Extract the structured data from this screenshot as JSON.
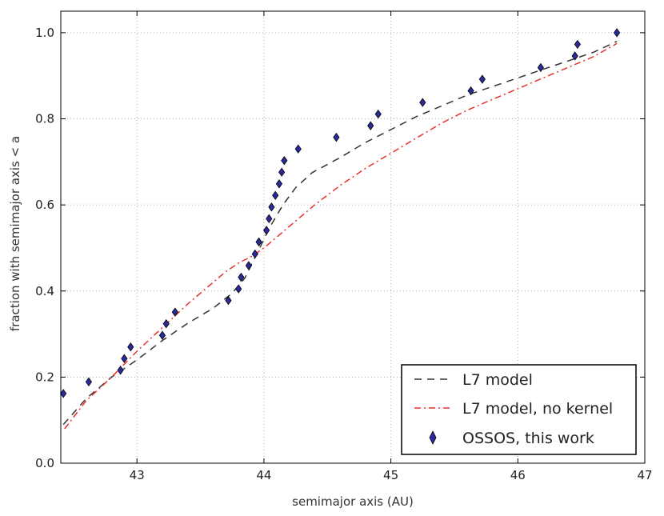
{
  "chart_data": {
    "type": "line",
    "xlabel": "semimajor axis (AU)",
    "ylabel": "fraction with semimajor axis < a",
    "xlim": [
      42.4,
      47.0
    ],
    "ylim": [
      0.0,
      1.05
    ],
    "x_ticks": [
      43,
      44,
      45,
      46,
      47
    ],
    "y_ticks": [
      0.0,
      0.2,
      0.4,
      0.6,
      0.8,
      1.0
    ],
    "x_tick_labels": [
      "43",
      "44",
      "45",
      "46",
      "47"
    ],
    "y_tick_labels": [
      "0.0",
      "0.2",
      "0.4",
      "0.6",
      "0.8",
      "1.0"
    ],
    "grid": true,
    "legend_position": "bottom-right",
    "series": [
      {
        "name": "L7 model",
        "style": "dashed",
        "color": "#333333",
        "x": [
          42.42,
          42.6,
          42.8,
          43.0,
          43.2,
          43.4,
          43.6,
          43.75,
          43.85,
          43.95,
          44.05,
          44.15,
          44.25,
          44.38,
          44.6,
          44.8,
          45.0,
          45.2,
          45.4,
          45.6,
          45.8,
          46.0,
          46.2,
          46.4,
          46.6,
          46.78
        ],
        "y": [
          0.09,
          0.15,
          0.2,
          0.24,
          0.285,
          0.325,
          0.36,
          0.395,
          0.43,
          0.49,
          0.55,
          0.6,
          0.64,
          0.675,
          0.71,
          0.745,
          0.775,
          0.805,
          0.83,
          0.855,
          0.875,
          0.895,
          0.915,
          0.935,
          0.955,
          0.98
        ]
      },
      {
        "name": "L7 model, no kernel",
        "style": "dash-dot",
        "color": "#e8302a",
        "x": [
          42.43,
          42.6,
          42.8,
          43.0,
          43.2,
          43.4,
          43.6,
          43.7,
          43.8,
          43.9,
          44.0,
          44.2,
          44.4,
          44.6,
          44.8,
          45.0,
          45.2,
          45.4,
          45.6,
          45.8,
          46.0,
          46.2,
          46.4,
          46.6,
          46.78
        ],
        "y": [
          0.08,
          0.145,
          0.2,
          0.26,
          0.315,
          0.37,
          0.42,
          0.445,
          0.465,
          0.48,
          0.5,
          0.55,
          0.6,
          0.645,
          0.685,
          0.72,
          0.755,
          0.79,
          0.82,
          0.845,
          0.87,
          0.895,
          0.92,
          0.945,
          0.975
        ]
      },
      {
        "name": "OSSOS, this work",
        "style": "markers",
        "marker": "diamond",
        "color": "#2a2a9a",
        "x": [
          42.42,
          42.62,
          42.87,
          42.9,
          42.95,
          43.2,
          43.23,
          43.3,
          43.72,
          43.8,
          43.82,
          43.88,
          43.93,
          43.96,
          44.02,
          44.04,
          44.06,
          44.09,
          44.12,
          44.14,
          44.16,
          44.27,
          44.57,
          44.84,
          44.9,
          45.25,
          45.63,
          45.72,
          46.18,
          46.45,
          46.47,
          46.78
        ],
        "y": [
          0.162,
          0.189,
          0.216,
          0.243,
          0.27,
          0.297,
          0.324,
          0.351,
          0.378,
          0.405,
          0.432,
          0.459,
          0.486,
          0.514,
          0.541,
          0.568,
          0.595,
          0.622,
          0.649,
          0.676,
          0.703,
          0.73,
          0.757,
          0.784,
          0.811,
          0.838,
          0.865,
          0.892,
          0.919,
          0.946,
          0.973,
          1.0
        ]
      }
    ]
  },
  "legend": {
    "items": [
      {
        "label": "L7 model"
      },
      {
        "label": "L7 model, no kernel"
      },
      {
        "label": "OSSOS, this work"
      }
    ]
  }
}
